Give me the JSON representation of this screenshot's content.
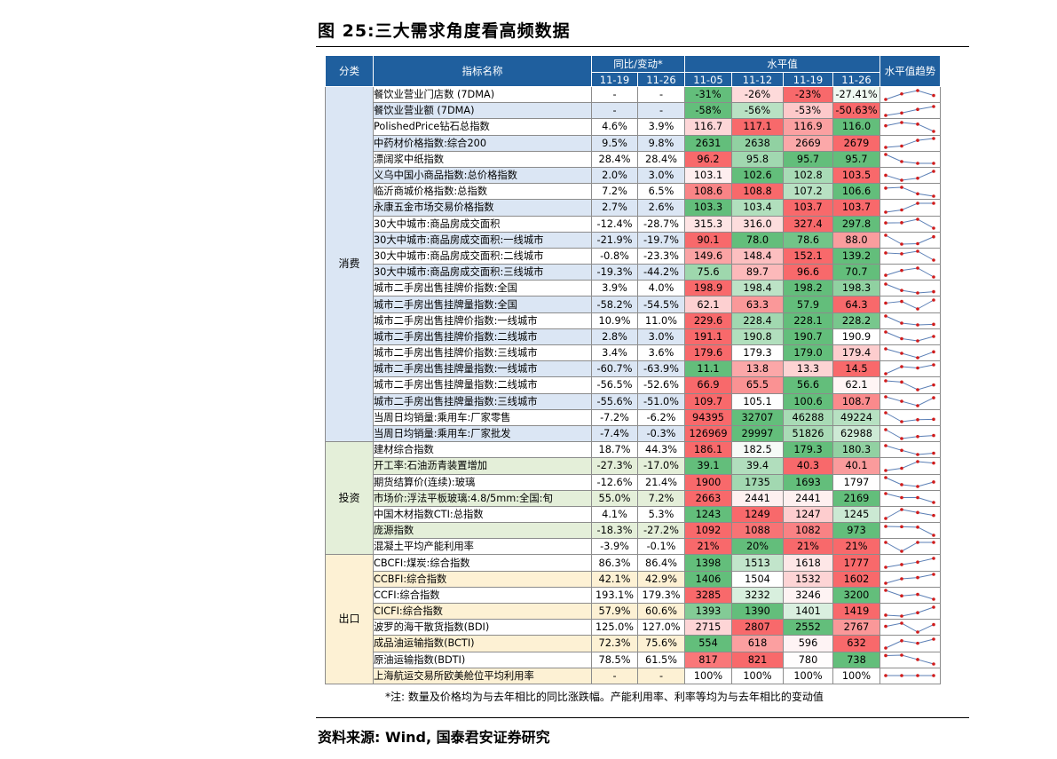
{
  "title": "图 25:三大需求角度看高频数据",
  "source": "资料来源: Wind, 国泰君安证券研究",
  "note": "*注: 数量及价格均为与去年相比的同比涨跌幅。产能利用率、利率等均为与去年相比的变动值",
  "headers": {
    "category": "分类",
    "indicator": "指标名称",
    "yoy_group": "同比/变动*",
    "level_group": "水平值",
    "trend": "水平值趋势",
    "yoy_dates": [
      "11-19",
      "11-26"
    ],
    "level_dates": [
      "11-05",
      "11-12",
      "11-19",
      "11-26"
    ]
  },
  "colors": {
    "header_bg": "#1f5f9e",
    "cons_bg": "#dbe6f4",
    "inv_bg": "#e4efd9",
    "exp_bg": "#fdf1d4",
    "heat_high": "#f8696b",
    "heat_low": "#63be7b",
    "spark_line": "#5b7fb5",
    "spark_dot": "#d01c1c"
  },
  "groups": [
    {
      "name": "消费",
      "key": "cons",
      "rows": [
        {
          "name": "餐饮业营业门店数 (7DMA)",
          "yoy": [
            "-",
            "-"
          ],
          "levels": [
            "-31%",
            "-26%",
            "-23%",
            "-27.41%"
          ]
        },
        {
          "name": "餐饮业营业额 (7DMA)",
          "yoy": [
            "-",
            "-"
          ],
          "levels": [
            "-58%",
            "-56%",
            "-53%",
            "-50.63%"
          ]
        },
        {
          "name": "PolishedPrice钻石总指数",
          "yoy": [
            "4.6%",
            "3.9%"
          ],
          "levels": [
            "116.7",
            "117.1",
            "116.9",
            "116.0"
          ]
        },
        {
          "name": "中药材价格指数:综合200",
          "yoy": [
            "9.5%",
            "9.8%"
          ],
          "levels": [
            "2631",
            "2638",
            "2669",
            "2679"
          ]
        },
        {
          "name": "漂阔浆中纸指数",
          "yoy": [
            "28.4%",
            "28.4%"
          ],
          "levels": [
            "96.2",
            "95.8",
            "95.7",
            "95.7"
          ]
        },
        {
          "name": "义乌中国小商品指数:总价格指数",
          "yoy": [
            "2.0%",
            "3.0%"
          ],
          "levels": [
            "103.1",
            "102.6",
            "102.8",
            "103.5"
          ]
        },
        {
          "name": "临沂商城价格指数:总指数",
          "yoy": [
            "7.2%",
            "6.5%"
          ],
          "levels": [
            "108.6",
            "108.8",
            "107.2",
            "106.6"
          ]
        },
        {
          "name": "永康五金市场交易价格指数",
          "yoy": [
            "2.7%",
            "2.6%"
          ],
          "levels": [
            "103.3",
            "103.4",
            "103.7",
            "103.7"
          ]
        },
        {
          "name": "30大中城市:商品房成交面积",
          "yoy": [
            "-12.4%",
            "-28.7%"
          ],
          "levels": [
            "315.3",
            "316.0",
            "327.4",
            "297.8"
          ]
        },
        {
          "name": "30大中城市:商品房成交面积:一线城市",
          "yoy": [
            "-21.9%",
            "-19.7%"
          ],
          "levels": [
            "90.1",
            "78.0",
            "78.6",
            "88.0"
          ]
        },
        {
          "name": "30大中城市:商品房成交面积:二线城市",
          "yoy": [
            "-0.8%",
            "-23.3%"
          ],
          "levels": [
            "149.6",
            "148.4",
            "152.1",
            "139.2"
          ]
        },
        {
          "name": "30大中城市:商品房成交面积:三线城市",
          "yoy": [
            "-19.3%",
            "-44.2%"
          ],
          "levels": [
            "75.6",
            "89.7",
            "96.6",
            "70.7"
          ]
        },
        {
          "name": "城市二手房出售挂牌价指数:全国",
          "yoy": [
            "3.9%",
            "4.0%"
          ],
          "levels": [
            "198.9",
            "198.4",
            "198.2",
            "198.3"
          ]
        },
        {
          "name": "城市二手房出售挂牌量指数:全国",
          "yoy": [
            "-58.2%",
            "-54.5%"
          ],
          "levels": [
            "62.1",
            "63.3",
            "57.9",
            "64.3"
          ]
        },
        {
          "name": "城市二手房出售挂牌价指数:一线城市",
          "yoy": [
            "10.9%",
            "11.0%"
          ],
          "levels": [
            "229.6",
            "228.4",
            "228.1",
            "228.2"
          ]
        },
        {
          "name": "城市二手房出售挂牌价指数:二线城市",
          "yoy": [
            "2.8%",
            "3.0%"
          ],
          "levels": [
            "191.1",
            "190.8",
            "190.7",
            "190.9"
          ]
        },
        {
          "name": "城市二手房出售挂牌价指数:三线城市",
          "yoy": [
            "3.4%",
            "3.6%"
          ],
          "levels": [
            "179.6",
            "179.3",
            "179.0",
            "179.4"
          ]
        },
        {
          "name": "城市二手房出售挂牌量指数:一线城市",
          "yoy": [
            "-60.7%",
            "-63.9%"
          ],
          "levels": [
            "11.1",
            "13.8",
            "13.3",
            "14.5"
          ]
        },
        {
          "name": "城市二手房出售挂牌量指数:二线城市",
          "yoy": [
            "-56.5%",
            "-52.6%"
          ],
          "levels": [
            "66.9",
            "65.5",
            "56.6",
            "62.1"
          ]
        },
        {
          "name": "城市二手房出售挂牌量指数:三线城市",
          "yoy": [
            "-55.6%",
            "-51.0%"
          ],
          "levels": [
            "109.7",
            "105.1",
            "100.6",
            "108.7"
          ]
        },
        {
          "name": "当周日均销量:乘用车:厂家零售",
          "yoy": [
            "-7.2%",
            "-6.2%"
          ],
          "levels": [
            "94395",
            "32707",
            "46288",
            "49224"
          ]
        },
        {
          "name": "当周日均销量:乘用车:厂家批发",
          "yoy": [
            "-7.4%",
            "-0.3%"
          ],
          "levels": [
            "126969",
            "29997",
            "51826",
            "62988"
          ]
        }
      ]
    },
    {
      "name": "投资",
      "key": "inv",
      "rows": [
        {
          "name": "建材综合指数",
          "yoy": [
            "18.7%",
            "44.3%"
          ],
          "levels": [
            "186.1",
            "182.5",
            "179.3",
            "180.3"
          ]
        },
        {
          "name": "开工率:石油沥青装置增加",
          "yoy": [
            "-27.3%",
            "-17.0%"
          ],
          "levels": [
            "39.1",
            "39.4",
            "40.3",
            "40.1"
          ]
        },
        {
          "name": "期货结算价(连续):玻璃",
          "yoy": [
            "-12.6%",
            "21.4%"
          ],
          "levels": [
            "1900",
            "1735",
            "1693",
            "1797"
          ]
        },
        {
          "name": "市场价:浮法平板玻璃:4.8/5mm:全国:旬",
          "yoy": [
            "55.0%",
            "7.2%"
          ],
          "levels": [
            "2663",
            "2441",
            "2441",
            "2169"
          ]
        },
        {
          "name": "中国木材指数CTI:总指数",
          "yoy": [
            "4.1%",
            "5.3%"
          ],
          "levels": [
            "1243",
            "1249",
            "1247",
            "1245"
          ]
        },
        {
          "name": "庞源指数",
          "yoy": [
            "-18.3%",
            "-27.2%"
          ],
          "levels": [
            "1092",
            "1088",
            "1082",
            "973"
          ]
        },
        {
          "name": "混凝土平均产能利用率",
          "yoy": [
            "-3.9%",
            "-0.1%"
          ],
          "levels": [
            "21%",
            "20%",
            "21%",
            "21%"
          ]
        }
      ]
    },
    {
      "name": "出口",
      "key": "exp",
      "rows": [
        {
          "name": "CBCFI:煤炭:综合指数",
          "yoy": [
            "86.3%",
            "86.4%"
          ],
          "levels": [
            "1398",
            "1513",
            "1618",
            "1777"
          ]
        },
        {
          "name": "CCBFI:综合指数",
          "yoy": [
            "42.1%",
            "42.9%"
          ],
          "levels": [
            "1406",
            "1504",
            "1532",
            "1602"
          ]
        },
        {
          "name": "CCFI:综合指数",
          "yoy": [
            "193.1%",
            "179.3%"
          ],
          "levels": [
            "3285",
            "3232",
            "3246",
            "3200"
          ]
        },
        {
          "name": "CICFI:综合指数",
          "yoy": [
            "57.9%",
            "60.6%"
          ],
          "levels": [
            "1393",
            "1390",
            "1401",
            "1419"
          ]
        },
        {
          "name": "波罗的海干散货指数(BDI)",
          "yoy": [
            "125.0%",
            "127.0%"
          ],
          "levels": [
            "2715",
            "2807",
            "2552",
            "2767"
          ]
        },
        {
          "name": "成品油运输指数(BCTI)",
          "yoy": [
            "72.3%",
            "75.6%"
          ],
          "levels": [
            "554",
            "618",
            "596",
            "632"
          ]
        },
        {
          "name": "原油运输指数(BDTI)",
          "yoy": [
            "78.5%",
            "61.5%"
          ],
          "levels": [
            "817",
            "821",
            "780",
            "738"
          ]
        },
        {
          "name": "上海航运交易所欧美舱位平均利用率",
          "yoy": [
            "-",
            "-"
          ],
          "levels": [
            "100%",
            "100%",
            "100%",
            "100%"
          ]
        }
      ]
    }
  ]
}
